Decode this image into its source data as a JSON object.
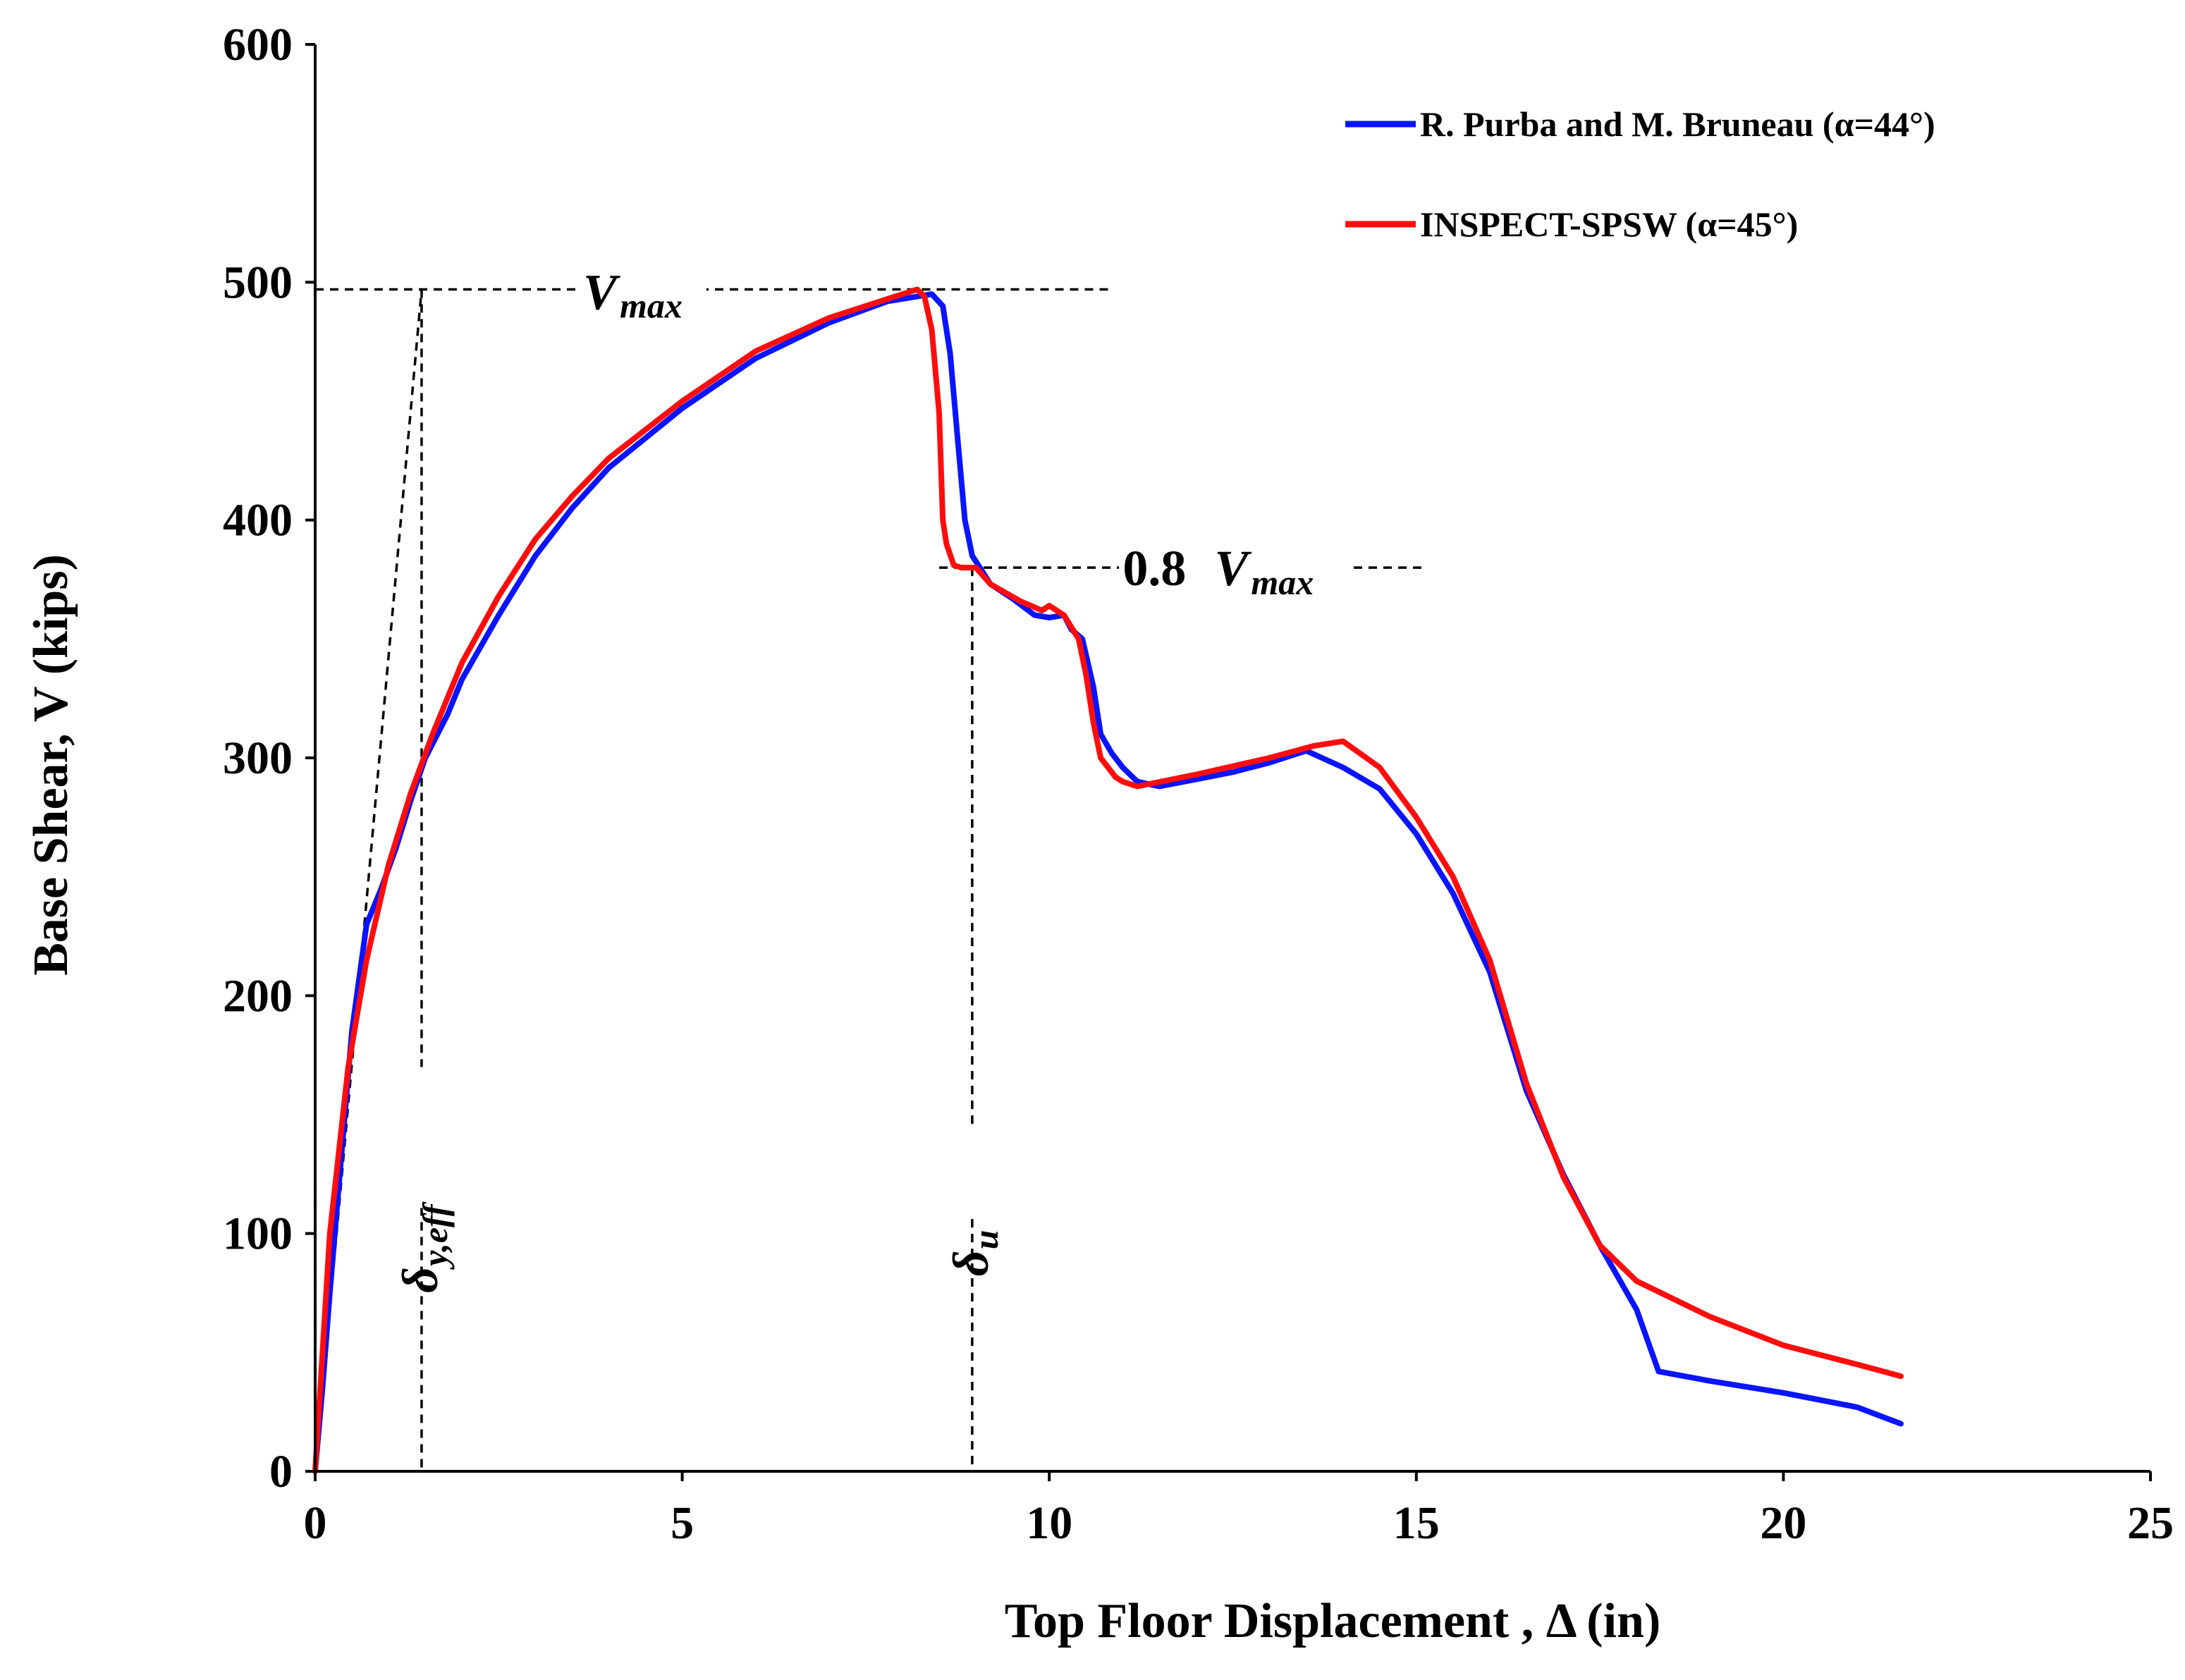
{
  "chart_data": {
    "type": "line",
    "title": "",
    "xlabel": "Top Floor Displacement , Δ (in)",
    "ylabel": "Base Shear, V (kips)",
    "xlim": [
      0,
      25
    ],
    "ylim": [
      0,
      600
    ],
    "x_ticks": [
      0,
      5,
      10,
      15,
      20,
      25
    ],
    "y_ticks": [
      0,
      100,
      200,
      300,
      400,
      500,
      600
    ],
    "x_tick_labels": [
      "0",
      "5",
      "10",
      "15",
      "20",
      "25"
    ],
    "y_tick_labels": [
      "0",
      "100",
      "200",
      "300",
      "400",
      "500",
      "600"
    ],
    "grid": false,
    "legend_position": "top-right",
    "series": [
      {
        "name": "R. Purba and M. Bruneau (α=44°)",
        "color": "#0a14ff",
        "points": [
          [
            0,
            0
          ],
          [
            0.1,
            35
          ],
          [
            0.2,
            75
          ],
          [
            0.35,
            130
          ],
          [
            0.5,
            185
          ],
          [
            0.7,
            230
          ],
          [
            0.9,
            245
          ],
          [
            1.1,
            262
          ],
          [
            1.3,
            282
          ],
          [
            1.5,
            300
          ],
          [
            1.8,
            318
          ],
          [
            2.0,
            333
          ],
          [
            2.5,
            360
          ],
          [
            3.0,
            385
          ],
          [
            3.5,
            405
          ],
          [
            4.0,
            422
          ],
          [
            5.0,
            447
          ],
          [
            6.0,
            468
          ],
          [
            7.0,
            483
          ],
          [
            7.8,
            492
          ],
          [
            8.2,
            494
          ],
          [
            8.4,
            495
          ],
          [
            8.55,
            490
          ],
          [
            8.65,
            470
          ],
          [
            8.75,
            435
          ],
          [
            8.85,
            400
          ],
          [
            8.95,
            385
          ],
          [
            9.2,
            373
          ],
          [
            9.5,
            367
          ],
          [
            9.8,
            360
          ],
          [
            10.0,
            359
          ],
          [
            10.2,
            360
          ],
          [
            10.3,
            354
          ],
          [
            10.45,
            350
          ],
          [
            10.6,
            330
          ],
          [
            10.7,
            310
          ],
          [
            10.85,
            302
          ],
          [
            11.0,
            296
          ],
          [
            11.2,
            290
          ],
          [
            11.5,
            288
          ],
          [
            12.0,
            291
          ],
          [
            12.5,
            294
          ],
          [
            13.0,
            298
          ],
          [
            13.5,
            303
          ],
          [
            14.0,
            296
          ],
          [
            14.5,
            287
          ],
          [
            15.0,
            268
          ],
          [
            15.5,
            243
          ],
          [
            16.0,
            210
          ],
          [
            16.5,
            160
          ],
          [
            17.0,
            125
          ],
          [
            17.5,
            95
          ],
          [
            18.0,
            68
          ],
          [
            18.3,
            42
          ],
          [
            19.0,
            38
          ],
          [
            20.0,
            33
          ],
          [
            21.0,
            27
          ],
          [
            21.6,
            20
          ]
        ]
      },
      {
        "name": "INSPECT-SPSW (α=45°)",
        "color": "#ff0d0d",
        "points": [
          [
            0,
            0
          ],
          [
            0.2,
            100
          ],
          [
            0.45,
            170
          ],
          [
            0.7,
            215
          ],
          [
            1.0,
            255
          ],
          [
            1.3,
            285
          ],
          [
            1.6,
            310
          ],
          [
            2.0,
            340
          ],
          [
            2.5,
            368
          ],
          [
            3.0,
            392
          ],
          [
            3.5,
            410
          ],
          [
            4.0,
            426
          ],
          [
            5.0,
            450
          ],
          [
            6.0,
            471
          ],
          [
            7.0,
            485
          ],
          [
            7.8,
            493
          ],
          [
            8.2,
            497
          ],
          [
            8.3,
            494
          ],
          [
            8.4,
            480
          ],
          [
            8.5,
            445
          ],
          [
            8.55,
            400
          ],
          [
            8.6,
            390
          ],
          [
            8.7,
            381
          ],
          [
            8.8,
            380
          ],
          [
            9.0,
            380
          ],
          [
            9.2,
            373
          ],
          [
            9.6,
            366
          ],
          [
            9.9,
            362
          ],
          [
            10.0,
            364
          ],
          [
            10.2,
            360
          ],
          [
            10.4,
            350
          ],
          [
            10.5,
            335
          ],
          [
            10.6,
            315
          ],
          [
            10.7,
            300
          ],
          [
            10.9,
            292
          ],
          [
            11.0,
            290
          ],
          [
            11.2,
            288
          ],
          [
            12.0,
            293
          ],
          [
            13.0,
            300
          ],
          [
            13.6,
            305
          ],
          [
            14.0,
            307
          ],
          [
            14.5,
            296
          ],
          [
            15.0,
            275
          ],
          [
            15.5,
            250
          ],
          [
            16.0,
            215
          ],
          [
            16.5,
            163
          ],
          [
            17.0,
            124
          ],
          [
            17.5,
            95
          ],
          [
            18.0,
            80
          ],
          [
            19.0,
            65
          ],
          [
            20.0,
            53
          ],
          [
            21.0,
            45
          ],
          [
            21.6,
            40
          ]
        ]
      }
    ],
    "annotations": {
      "vmax_value": 497,
      "vmax_label": "V",
      "vmax_sub": "max",
      "point8_prefix": "0.8 ",
      "point8_value": 380,
      "point8_label": "V",
      "point8_sub": "max",
      "delta_y_eff_x": 1.45,
      "delta_y_eff_label": "δ",
      "delta_y_eff_sub": "y,eff",
      "delta_u_x": 8.95,
      "delta_u_label": "δ",
      "delta_u_sub": "u",
      "initial_stiffness_line": [
        [
          0,
          0
        ],
        [
          1.45,
          497
        ]
      ]
    }
  }
}
